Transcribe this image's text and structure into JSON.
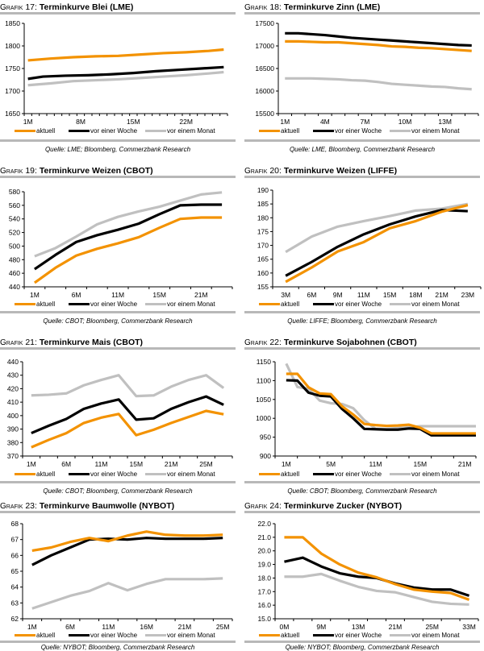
{
  "series_names": [
    "aktuell",
    "vor einer Woche",
    "vor einem Monat"
  ],
  "series_colors": [
    "#f39200",
    "#000000",
    "#c0c0c0"
  ],
  "chart_data": [
    {
      "type": "line",
      "id": "g17",
      "prefix": "Grafik",
      "number": "17",
      "title": "Terminkurve Blei (LME)",
      "source": "Quelle: LME; Bloomberg, Commerzbank Research",
      "xlabel": "",
      "ylabel": "",
      "ylim": [
        1650,
        1850
      ],
      "yticks": [
        "1650",
        "1700",
        "1750",
        "1800",
        "1850"
      ],
      "yticks_values": [
        1650,
        1700,
        1750,
        1800,
        1850
      ],
      "xtick_labels": [
        "1M",
        "8M",
        "15M",
        "22M"
      ],
      "xtick_positions": [
        0,
        7,
        14,
        21
      ],
      "x_count": 27,
      "legend": "bottom",
      "series": [
        {
          "name": "aktuell",
          "x": [
            0,
            3,
            6,
            9,
            12,
            15,
            18,
            21,
            24,
            26
          ],
          "values": [
            1768,
            1772,
            1775,
            1777,
            1778,
            1781,
            1784,
            1786,
            1789,
            1792
          ]
        },
        {
          "name": "vor einer Woche",
          "x": [
            0,
            2,
            5,
            8,
            11,
            14,
            17,
            20,
            23,
            26
          ],
          "values": [
            1727,
            1732,
            1734,
            1735,
            1737,
            1740,
            1744,
            1747,
            1750,
            1753
          ]
        },
        {
          "name": "vor einem Monat",
          "x": [
            0,
            3,
            6,
            9,
            12,
            15,
            18,
            21,
            24,
            26
          ],
          "values": [
            1713,
            1717,
            1722,
            1724,
            1726,
            1729,
            1732,
            1735,
            1739,
            1742
          ]
        }
      ]
    },
    {
      "type": "line",
      "id": "g18",
      "prefix": "Grafik",
      "number": "18",
      "title": "Terminkurve Zinn (LME)",
      "source": "Quelle: LME, Bloomberg, Commerzbank Research",
      "xlabel": "",
      "ylabel": "",
      "ylim": [
        15500,
        17500
      ],
      "yticks": [
        "15500",
        "16000",
        "16500",
        "17000",
        "17500"
      ],
      "yticks_values": [
        15500,
        16000,
        16500,
        17000,
        17500
      ],
      "xtick_labels": [
        "1M",
        "4M",
        "7M",
        "10M",
        "13M"
      ],
      "xtick_positions": [
        0,
        3,
        6,
        9,
        12
      ],
      "x_count": 15,
      "legend": "bottom",
      "series": [
        {
          "name": "aktuell",
          "x": [
            0,
            1,
            2,
            3,
            4,
            5,
            6,
            7,
            8,
            9,
            10,
            11,
            12,
            13,
            14
          ],
          "values": [
            17100,
            17100,
            17090,
            17080,
            17080,
            17060,
            17040,
            17020,
            16990,
            16980,
            16960,
            16950,
            16930,
            16910,
            16890
          ]
        },
        {
          "name": "vor einer Woche",
          "x": [
            0,
            1,
            2,
            3,
            4,
            5,
            6,
            7,
            8,
            9,
            10,
            11,
            12,
            13,
            14
          ],
          "values": [
            17280,
            17280,
            17260,
            17240,
            17210,
            17180,
            17160,
            17140,
            17120,
            17100,
            17080,
            17060,
            17040,
            17020,
            17010
          ]
        },
        {
          "name": "vor einem Monat",
          "x": [
            0,
            1,
            2,
            3,
            4,
            5,
            6,
            7,
            8,
            9,
            10,
            11,
            12,
            13,
            14
          ],
          "values": [
            16280,
            16280,
            16280,
            16270,
            16260,
            16240,
            16230,
            16200,
            16160,
            16140,
            16120,
            16100,
            16090,
            16060,
            16040
          ]
        }
      ]
    },
    {
      "type": "line",
      "id": "g19",
      "prefix": "Grafik",
      "number": "19",
      "title": "Terminkurve Weizen (CBOT)",
      "source": "Quelle: CBOT; Bloomberg, Commerzbank Research",
      "xlabel": "",
      "ylabel": "",
      "ylim": [
        440,
        580
      ],
      "yticks": [
        "440",
        "460",
        "480",
        "500",
        "520",
        "540",
        "560",
        "580"
      ],
      "yticks_values": [
        440,
        460,
        480,
        500,
        520,
        540,
        560,
        580
      ],
      "xtick_labels": [
        "1M",
        "6M",
        "11M",
        "15M",
        "21M"
      ],
      "xtick_positions": [
        0,
        2,
        4,
        6,
        8
      ],
      "x_count": 10,
      "legend": "bottom",
      "series": [
        {
          "name": "aktuell",
          "x": [
            0,
            1,
            2,
            3,
            4,
            5,
            6,
            7,
            8,
            9
          ],
          "values": [
            446,
            468,
            486,
            496,
            504,
            513,
            527,
            540,
            542,
            542
          ]
        },
        {
          "name": "vor einer Woche",
          "x": [
            0,
            1,
            2,
            3,
            4,
            5,
            6,
            7,
            8,
            9
          ],
          "values": [
            466,
            487,
            506,
            516,
            524,
            533,
            547,
            560,
            561,
            561
          ]
        },
        {
          "name": "vor einem Monat",
          "x": [
            0,
            1,
            2,
            3,
            4,
            5,
            6,
            7,
            8,
            9
          ],
          "values": [
            485,
            497,
            514,
            532,
            543,
            551,
            558,
            567,
            576,
            579
          ]
        }
      ]
    },
    {
      "type": "line",
      "id": "g20",
      "prefix": "Grafik",
      "number": "20",
      "title": "Terminkurve Weizen (LIFFE)",
      "source": "Quelle: LIFFE; Bloomberg, Commerzbank Research",
      "xlabel": "",
      "ylabel": "",
      "ylim": [
        155,
        190
      ],
      "yticks": [
        "155",
        "160",
        "165",
        "170",
        "175",
        "180",
        "185",
        "190"
      ],
      "yticks_values": [
        155,
        160,
        165,
        170,
        175,
        180,
        185,
        190
      ],
      "xtick_labels": [
        "3M",
        "6M",
        "9M",
        "11M",
        "15M",
        "18M",
        "21M",
        "23M"
      ],
      "xtick_positions": [
        0,
        1,
        2,
        3,
        4,
        5,
        6,
        7
      ],
      "x_count": 8,
      "legend": "bottom",
      "series": [
        {
          "name": "aktuell",
          "x": [
            0,
            1,
            2,
            3,
            4,
            5,
            6,
            7
          ],
          "values": [
            156.8,
            162,
            167.8,
            171.2,
            176.2,
            178.8,
            182.2,
            184.6
          ]
        },
        {
          "name": "vor einer Woche",
          "x": [
            0,
            1,
            2,
            3,
            4,
            5,
            6,
            7
          ],
          "values": [
            159,
            164,
            169.5,
            174,
            177.6,
            180.5,
            182.8,
            182.4
          ]
        },
        {
          "name": "vor einem Monat",
          "x": [
            0,
            1,
            2,
            3,
            4,
            5,
            6,
            7
          ],
          "values": [
            167.6,
            173.2,
            176.8,
            178.8,
            180.6,
            182.6,
            183.3,
            185
          ]
        }
      ]
    },
    {
      "type": "line",
      "id": "g21",
      "prefix": "Grafik",
      "number": "21",
      "title": "Terminkurve Mais (CBOT)",
      "source": "Quelle: CBOT; Bloomberg, Commerzbank Research",
      "xlabel": "",
      "ylabel": "",
      "ylim": [
        370,
        440
      ],
      "yticks": [
        "370",
        "380",
        "390",
        "400",
        "410",
        "420",
        "430",
        "440"
      ],
      "yticks_values": [
        370,
        380,
        390,
        400,
        410,
        420,
        430,
        440
      ],
      "xtick_labels": [
        "1M",
        "6M",
        "11M",
        "15M",
        "21M",
        "25M"
      ],
      "xtick_positions": [
        0,
        2,
        4,
        6,
        8,
        10
      ],
      "x_count": 12,
      "legend": "bottom",
      "series": [
        {
          "name": "aktuell",
          "x": [
            0,
            1,
            2,
            3,
            4,
            5,
            6,
            7,
            8,
            9,
            10,
            11
          ],
          "values": [
            376.5,
            382,
            387,
            394.5,
            398.5,
            401.2,
            385.5,
            389.5,
            394.5,
            399,
            403.5,
            401
          ]
        },
        {
          "name": "vor einer Woche",
          "x": [
            0,
            1,
            2,
            3,
            4,
            5,
            6,
            7,
            8,
            9,
            10,
            11
          ],
          "values": [
            387,
            392.5,
            397.5,
            405,
            409,
            412,
            397,
            398,
            405,
            410,
            414.2,
            408
          ]
        },
        {
          "name": "vor einem Monat",
          "x": [
            0,
            1,
            2,
            3,
            4,
            5,
            6,
            7,
            8,
            9,
            10,
            11
          ],
          "values": [
            415,
            415.5,
            416.5,
            422.5,
            426.5,
            430,
            414.5,
            415,
            421.5,
            426.5,
            430,
            420.5
          ]
        }
      ]
    },
    {
      "type": "line",
      "id": "g22",
      "prefix": "Grafik",
      "number": "22",
      "title": "Terminkurve Sojabohnen (CBOT)",
      "source": "Quelle: CBOT; Bloomberg, Commerzbank Research",
      "xlabel": "",
      "ylabel": "",
      "ylim": [
        900,
        1150
      ],
      "yticks": [
        "900",
        "950",
        "1000",
        "1050",
        "1100",
        "1150"
      ],
      "yticks_values": [
        900,
        950,
        1000,
        1050,
        1100,
        1150
      ],
      "xtick_labels": [
        "1M",
        "5M",
        "11M",
        "15M",
        "21M"
      ],
      "xtick_positions": [
        0,
        2,
        4,
        6,
        8
      ],
      "x_count": 9,
      "legend": "bottom",
      "series": [
        {
          "name": "aktuell",
          "x": [
            0,
            0.5,
            1,
            1.5,
            2,
            2.5,
            3,
            3.5,
            4,
            4.5,
            5,
            5.5,
            6,
            6.5,
            7,
            7.5,
            8,
            8.5
          ],
          "values": [
            1118,
            1118,
            1082,
            1066,
            1064,
            1032,
            1010,
            985,
            982,
            980,
            981,
            983,
            975,
            960,
            960,
            960,
            960,
            960
          ]
        },
        {
          "name": "vor einer Woche",
          "x": [
            0,
            0.5,
            1,
            1.5,
            2,
            2.5,
            3,
            3.5,
            4,
            4.5,
            5,
            5.5,
            6,
            6.5,
            7,
            7.5,
            8,
            8.5
          ],
          "values": [
            1101,
            1100,
            1068,
            1060,
            1058,
            1025,
            1000,
            972,
            971,
            970,
            970,
            973,
            972,
            955,
            955,
            955,
            955,
            955
          ]
        },
        {
          "name": "vor einem Monat",
          "x": [
            0,
            0.5,
            1,
            1.5,
            2,
            2.5,
            3,
            3.5,
            4,
            4.5,
            5,
            5.5,
            6,
            6.5,
            7,
            7.5,
            8,
            8.5
          ],
          "values": [
            1145,
            1083,
            1078,
            1047,
            1040,
            1038,
            1027,
            995,
            972,
            972,
            974,
            976,
            979,
            979,
            979,
            979,
            979,
            979
          ]
        }
      ]
    },
    {
      "type": "line",
      "id": "g23",
      "prefix": "Grafik",
      "number": "23",
      "title": "Terminkurve Baumwolle (NYBOT)",
      "source": "Quelle: NYBOT; Bloomberg, Commerzbank Research",
      "xlabel": "",
      "ylabel": "",
      "ylim": [
        62,
        68
      ],
      "yticks": [
        "62",
        "63",
        "64",
        "65",
        "66",
        "67",
        "68"
      ],
      "yticks_values": [
        62,
        63,
        64,
        65,
        66,
        67,
        68
      ],
      "xtick_labels": [
        "1M",
        "6M",
        "11M",
        "16M",
        "21M",
        "25M"
      ],
      "xtick_positions": [
        0,
        2,
        4,
        6,
        8,
        10
      ],
      "x_count": 11,
      "legend": "bottom",
      "series": [
        {
          "name": "aktuell",
          "x": [
            0,
            1,
            2,
            3,
            4,
            5,
            6,
            7,
            8,
            9,
            10
          ],
          "values": [
            66.3,
            66.5,
            66.85,
            67.1,
            66.9,
            67.25,
            67.5,
            67.3,
            67.25,
            67.25,
            67.3
          ]
        },
        {
          "name": "vor einer Woche",
          "x": [
            0,
            1,
            2,
            3,
            4,
            5,
            6,
            7,
            8,
            9,
            10
          ],
          "values": [
            65.4,
            66.0,
            66.5,
            67.0,
            67.05,
            67.0,
            67.1,
            67.05,
            67.05,
            67.05,
            67.1
          ]
        },
        {
          "name": "vor einem Monat",
          "x": [
            0,
            1,
            2,
            3,
            4,
            5,
            6,
            7,
            8,
            9,
            10
          ],
          "values": [
            62.65,
            63.05,
            63.45,
            63.75,
            64.25,
            63.8,
            64.2,
            64.5,
            64.5,
            64.5,
            64.55
          ]
        }
      ]
    },
    {
      "type": "line",
      "id": "g24",
      "prefix": "Grafik",
      "number": "24",
      "title": "Terminkurve Zucker (NYBOT)",
      "source": "Quelle: NYBOT; Bloomberg, Commerzbank Research",
      "xlabel": "",
      "ylabel": "",
      "ylim": [
        15.0,
        22.0
      ],
      "yticks": [
        "15.0",
        "16.0",
        "17.0",
        "18.0",
        "19.0",
        "20.0",
        "21.0",
        "22.0"
      ],
      "yticks_values": [
        15,
        16,
        17,
        18,
        19,
        20,
        21,
        22
      ],
      "xtick_labels": [
        "0M",
        "9M",
        "13M",
        "21M",
        "25M",
        "33M"
      ],
      "xtick_positions": [
        0,
        2,
        4,
        6,
        8,
        10
      ],
      "x_count": 11,
      "legend": "bottom",
      "series": [
        {
          "name": "aktuell",
          "x": [
            0,
            1,
            2,
            3,
            4,
            5,
            6,
            7,
            8,
            9,
            10
          ],
          "values": [
            21.0,
            21.0,
            19.8,
            19.0,
            18.4,
            18.05,
            17.55,
            17.15,
            17.0,
            16.9,
            16.4
          ]
        },
        {
          "name": "vor einer Woche",
          "x": [
            0,
            1,
            2,
            3,
            4,
            5,
            6,
            7,
            8,
            9,
            10
          ],
          "values": [
            19.2,
            19.5,
            18.85,
            18.35,
            18.1,
            18.0,
            17.6,
            17.3,
            17.15,
            17.15,
            16.7
          ]
        },
        {
          "name": "vor einem Monat",
          "x": [
            0,
            1,
            2,
            3,
            4,
            5,
            6,
            7,
            8,
            9,
            10
          ],
          "values": [
            18.1,
            18.1,
            18.3,
            17.8,
            17.35,
            17.05,
            16.95,
            16.6,
            16.25,
            16.1,
            16.05
          ]
        }
      ]
    }
  ]
}
